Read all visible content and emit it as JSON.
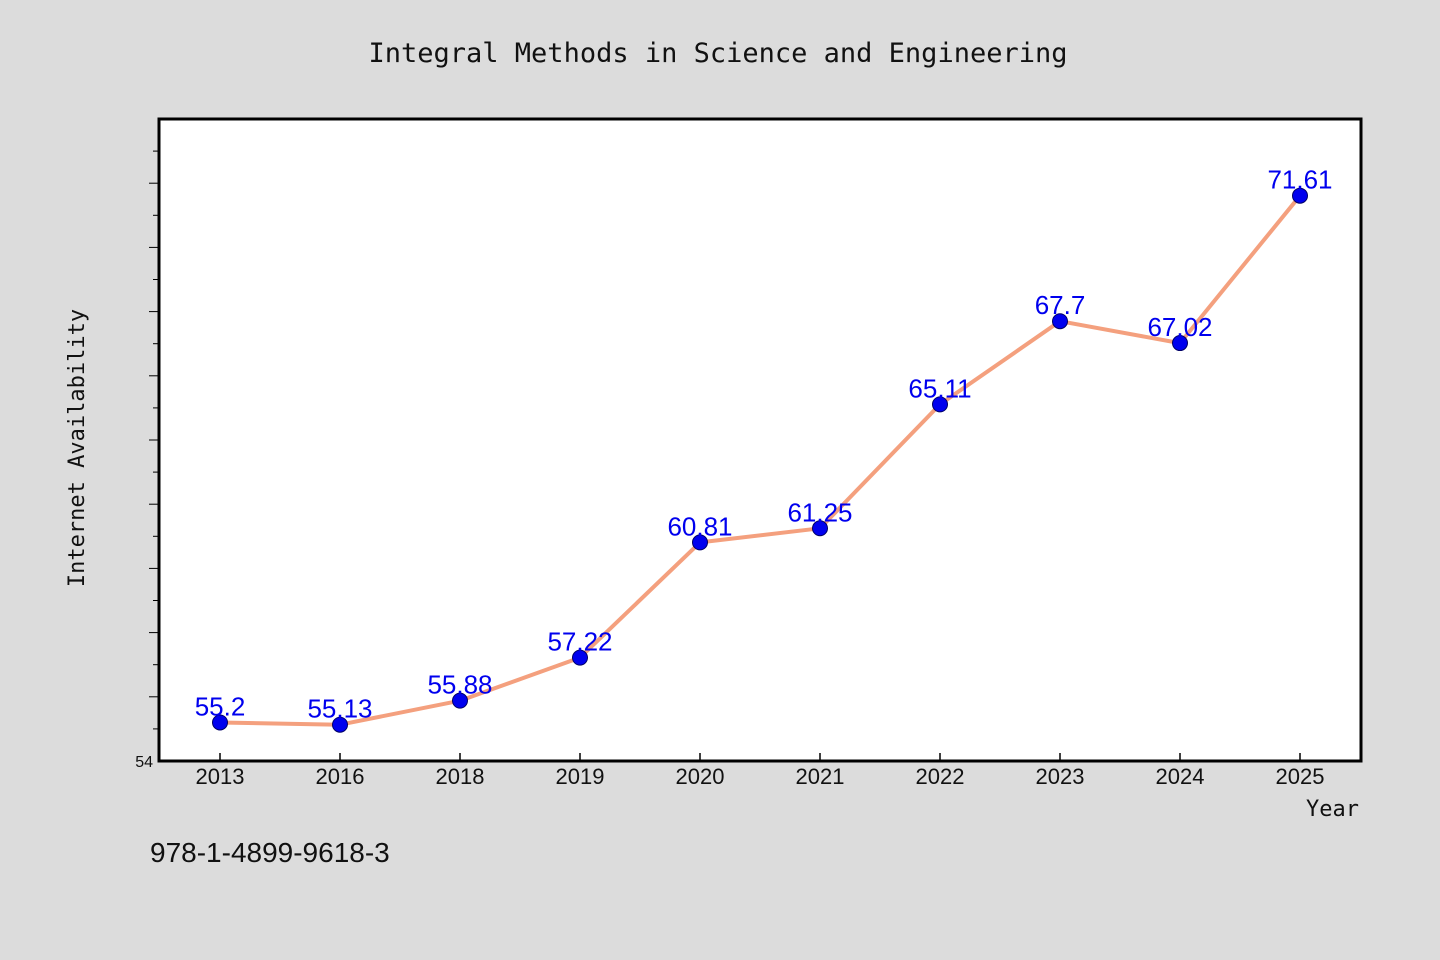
{
  "chart_data": {
    "type": "line",
    "title": "Integral Methods in Science and Engineering",
    "xlabel": "Year",
    "ylabel": "Internet Availability",
    "categories": [
      "2013",
      "2016",
      "2018",
      "2019",
      "2020",
      "2021",
      "2022",
      "2023",
      "2024",
      "2025"
    ],
    "series": [
      {
        "values": [
          55.2,
          55.13,
          55.88,
          57.22,
          60.81,
          61.25,
          65.11,
          67.7,
          67.02,
          71.61
        ],
        "labels": [
          "55.2",
          "55.13",
          "55.88",
          "57.22",
          "60.81",
          "61.25",
          "65.11",
          "67.7",
          "67.02",
          "71.61"
        ]
      }
    ],
    "ylim": [
      54,
      74
    ],
    "y_tick_labels": [
      "54"
    ],
    "grid": false,
    "legend": "none"
  },
  "footnote": "978-1-4899-9618-3",
  "colors": {
    "background": "#dcdcdc",
    "plot_background": "#ffffff",
    "line": "#f4a07e",
    "marker": "#0000ee",
    "data_label": "#0000ee"
  }
}
